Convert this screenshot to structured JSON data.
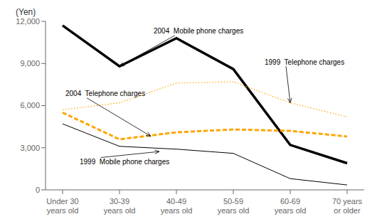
{
  "chart_data": {
    "type": "line",
    "categories": [
      "Under 30\nyears old",
      "30-39\nyears old",
      "40-49\nyears old",
      "50-59\nyears old",
      "60-69\nyears old",
      "70 years\nor older"
    ],
    "series": [
      {
        "color": "#000000",
        "line_style": "solid",
        "values": [
          11700,
          8800,
          10800,
          8600,
          3200,
          1900
        ]
      },
      {
        "color": "#FFA500",
        "line_style": "dotted",
        "values": [
          5700,
          6200,
          7600,
          7700,
          6200,
          5200
        ]
      },
      {
        "color": "#FFA500",
        "line_style": "dashed",
        "values": [
          5500,
          3600,
          4100,
          4300,
          4200,
          3800
        ]
      },
      {
        "color": "#000000",
        "line_style": "solid",
        "values": [
          4700,
          3100,
          2900,
          2600,
          800,
          350
        ]
      }
    ],
    "ylabel": "(Yen)",
    "ylim": [
      0,
      12000
    ],
    "yticks": [
      0,
      {
        "value": 3000,
        "label": "3,000"
      },
      {
        "value": 6000,
        "label": "6,000"
      },
      {
        "value": 9000,
        "label": "9,000"
      },
      {
        "value": 12000,
        "label": "12,000"
      }
    ],
    "grid": false,
    "annotations": [
      {
        "text": "2004  Mobile phone charges",
        "xy": [
          1.0,
          8800
        ],
        "xytext": [
          1.6,
          11300
        ]
      },
      {
        "text": "1999  Telephone charges",
        "xy": [
          4.0,
          6200
        ],
        "xytext": [
          3.55,
          9100
        ]
      },
      {
        "text": "2004  Telephone charges",
        "xy": [
          1.55,
          3820
        ],
        "xytext": [
          0.05,
          6850
        ]
      },
      {
        "text": "1999  Mobile phone charges",
        "xy": [
          1.7,
          2730
        ],
        "xytext": [
          0.3,
          2000
        ]
      }
    ]
  }
}
